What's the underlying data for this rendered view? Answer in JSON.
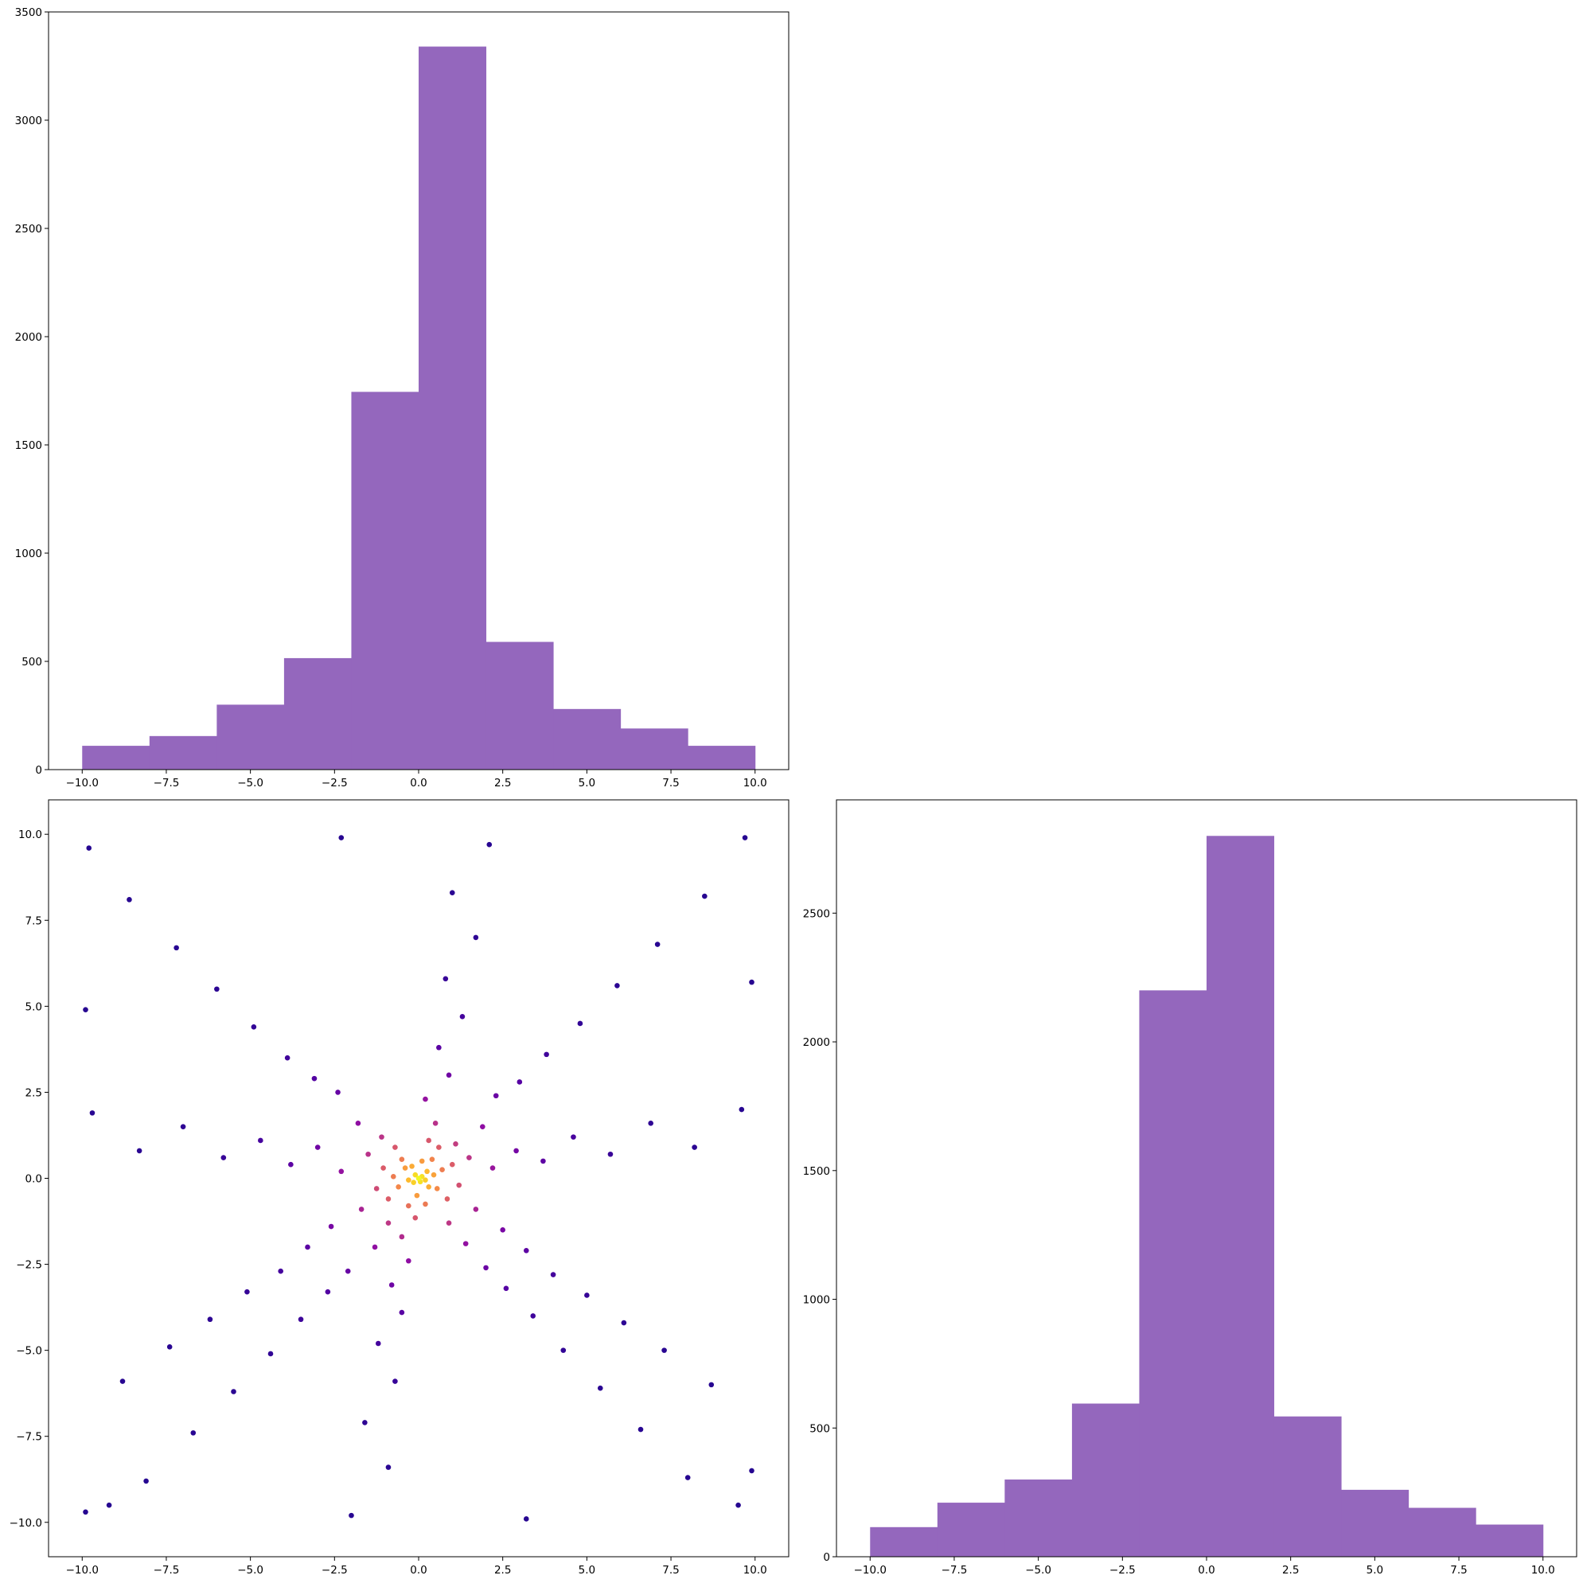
{
  "figure": {
    "background": "#ffffff"
  },
  "chart_data": [
    {
      "id": "top-left-histogram",
      "type": "bar",
      "subtype": "histogram",
      "title": "",
      "xlabel": "",
      "ylabel": "",
      "bin_edges": [
        -10.0,
        -8.0,
        -6.0,
        -4.0,
        -2.0,
        0.0,
        2.0,
        4.0,
        6.0,
        8.0,
        10.0
      ],
      "values": [
        110,
        155,
        300,
        515,
        1745,
        3340,
        590,
        280,
        190,
        110
      ],
      "xlim": [
        -11.0,
        11.0
      ],
      "ylim": [
        0,
        3500
      ],
      "xticks": [
        -10.0,
        -7.5,
        -5.0,
        -2.5,
        0.0,
        2.5,
        5.0,
        7.5,
        10.0
      ],
      "xtick_labels": [
        "−10.0",
        "−7.5",
        "−5.0",
        "−2.5",
        "0.0",
        "2.5",
        "5.0",
        "7.5",
        "10.0"
      ],
      "yticks": [
        0,
        500,
        1000,
        1500,
        2000,
        2500,
        3000,
        3500
      ],
      "ytick_labels": [
        "0",
        "500",
        "1000",
        "1500",
        "2000",
        "2500",
        "3000",
        "3500"
      ],
      "color": "#9467bd",
      "grid": false
    },
    {
      "id": "bottom-left-scatter",
      "type": "scatter",
      "title": "",
      "xlabel": "",
      "ylabel": "",
      "xlim": [
        -11.0,
        11.0
      ],
      "ylim": [
        -11.0,
        11.0
      ],
      "xticks": [
        -10.0,
        -7.5,
        -5.0,
        -2.5,
        0.0,
        2.5,
        5.0,
        7.5,
        10.0
      ],
      "xtick_labels": [
        "−10.0",
        "−7.5",
        "−5.0",
        "−2.5",
        "0.0",
        "2.5",
        "5.0",
        "7.5",
        "10.0"
      ],
      "yticks": [
        -10.0,
        -7.5,
        -5.0,
        -2.5,
        0.0,
        2.5,
        5.0,
        7.5,
        10.0
      ],
      "ytick_labels": [
        "−10.0",
        "−7.5",
        "−5.0",
        "−2.5",
        "0.0",
        "2.5",
        "5.0",
        "7.5",
        "10.0"
      ],
      "colormap": "plasma",
      "color_encoding": "point density",
      "points": [
        [
          0.0,
          0.0
        ],
        [
          0.1,
          0.05
        ],
        [
          -0.1,
          0.1
        ],
        [
          0.05,
          -0.1
        ],
        [
          0.2,
          -0.05
        ],
        [
          -0.15,
          -0.12
        ],
        [
          0.25,
          0.2
        ],
        [
          -0.3,
          -0.05
        ],
        [
          0.3,
          -0.25
        ],
        [
          -0.2,
          0.35
        ],
        [
          0.45,
          0.1
        ],
        [
          -0.4,
          0.3
        ],
        [
          0.1,
          0.5
        ],
        [
          -0.05,
          -0.5
        ],
        [
          0.55,
          -0.3
        ],
        [
          -0.6,
          -0.25
        ],
        [
          0.4,
          0.55
        ],
        [
          -0.5,
          0.55
        ],
        [
          0.7,
          0.25
        ],
        [
          -0.75,
          0.05
        ],
        [
          0.2,
          -0.75
        ],
        [
          -0.3,
          -0.8
        ],
        [
          0.85,
          -0.6
        ],
        [
          -0.9,
          -0.6
        ],
        [
          0.6,
          0.9
        ],
        [
          -0.7,
          0.9
        ],
        [
          1.0,
          0.4
        ],
        [
          -1.05,
          0.3
        ],
        [
          0.3,
          1.1
        ],
        [
          -0.1,
          -1.15
        ],
        [
          1.2,
          -0.2
        ],
        [
          -1.25,
          -0.3
        ],
        [
          1.1,
          1.0
        ],
        [
          -1.1,
          1.2
        ],
        [
          0.9,
          -1.3
        ],
        [
          -0.9,
          -1.3
        ],
        [
          1.5,
          0.6
        ],
        [
          -1.5,
          0.7
        ],
        [
          0.5,
          1.6
        ],
        [
          -0.5,
          -1.7
        ],
        [
          1.7,
          -0.9
        ],
        [
          -1.7,
          -0.9
        ],
        [
          1.9,
          1.5
        ],
        [
          -1.8,
          1.6
        ],
        [
          1.4,
          -1.9
        ],
        [
          -1.3,
          -2.0
        ],
        [
          2.2,
          0.3
        ],
        [
          -2.3,
          0.2
        ],
        [
          0.2,
          2.3
        ],
        [
          -0.3,
          -2.4
        ],
        [
          2.5,
          -1.5
        ],
        [
          -2.6,
          -1.4
        ],
        [
          2.3,
          2.4
        ],
        [
          -2.4,
          2.5
        ],
        [
          2.0,
          -2.6
        ],
        [
          -2.1,
          -2.7
        ],
        [
          2.9,
          0.8
        ],
        [
          -3.0,
          0.9
        ],
        [
          0.9,
          3.0
        ],
        [
          -0.8,
          -3.1
        ],
        [
          3.2,
          -2.1
        ],
        [
          -3.3,
          -2.0
        ],
        [
          3.0,
          2.8
        ],
        [
          -3.1,
          2.9
        ],
        [
          2.6,
          -3.2
        ],
        [
          -2.7,
          -3.3
        ],
        [
          3.7,
          0.5
        ],
        [
          -3.8,
          0.4
        ],
        [
          0.6,
          3.8
        ],
        [
          -0.5,
          -3.9
        ],
        [
          4.0,
          -2.8
        ],
        [
          -4.1,
          -2.7
        ],
        [
          3.8,
          3.6
        ],
        [
          -3.9,
          3.5
        ],
        [
          3.4,
          -4.0
        ],
        [
          -3.5,
          -4.1
        ],
        [
          4.6,
          1.2
        ],
        [
          -4.7,
          1.1
        ],
        [
          1.3,
          4.7
        ],
        [
          -1.2,
          -4.8
        ],
        [
          5.0,
          -3.4
        ],
        [
          -5.1,
          -3.3
        ],
        [
          4.8,
          4.5
        ],
        [
          -4.9,
          4.4
        ],
        [
          4.3,
          -5.0
        ],
        [
          -4.4,
          -5.1
        ],
        [
          5.7,
          0.7
        ],
        [
          -5.8,
          0.6
        ],
        [
          0.8,
          5.8
        ],
        [
          -0.7,
          -5.9
        ],
        [
          6.1,
          -4.2
        ],
        [
          -6.2,
          -4.1
        ],
        [
          5.9,
          5.6
        ],
        [
          -6.0,
          5.5
        ],
        [
          5.4,
          -6.1
        ],
        [
          -5.5,
          -6.2
        ],
        [
          6.9,
          1.6
        ],
        [
          -7.0,
          1.5
        ],
        [
          1.7,
          7.0
        ],
        [
          -1.6,
          -7.1
        ],
        [
          7.3,
          -5.0
        ],
        [
          -7.4,
          -4.9
        ],
        [
          7.1,
          6.8
        ],
        [
          -7.2,
          6.7
        ],
        [
          6.6,
          -7.3
        ],
        [
          -6.7,
          -7.4
        ],
        [
          8.2,
          0.9
        ],
        [
          -8.3,
          0.8
        ],
        [
          1.0,
          8.3
        ],
        [
          -0.9,
          -8.4
        ],
        [
          8.7,
          -6.0
        ],
        [
          -8.8,
          -5.9
        ],
        [
          8.5,
          8.2
        ],
        [
          -8.6,
          8.1
        ],
        [
          8.0,
          -8.7
        ],
        [
          -8.1,
          -8.8
        ],
        [
          9.6,
          2.0
        ],
        [
          -9.7,
          1.9
        ],
        [
          2.1,
          9.7
        ],
        [
          -2.0,
          -9.8
        ],
        [
          9.9,
          -8.5
        ],
        [
          -9.9,
          -9.7
        ],
        [
          9.7,
          9.9
        ],
        [
          -9.8,
          9.6
        ],
        [
          9.5,
          -9.5
        ],
        [
          -9.2,
          -9.5
        ],
        [
          9.9,
          5.7
        ],
        [
          -9.9,
          4.9
        ],
        [
          3.2,
          -9.9
        ],
        [
          -2.3,
          9.9
        ]
      ],
      "grid": false
    },
    {
      "id": "bottom-right-histogram",
      "type": "bar",
      "subtype": "histogram",
      "title": "",
      "xlabel": "",
      "ylabel": "",
      "bin_edges": [
        -10.0,
        -8.0,
        -6.0,
        -4.0,
        -2.0,
        0.0,
        2.0,
        4.0,
        6.0,
        8.0,
        10.0
      ],
      "values": [
        115,
        210,
        300,
        595,
        2200,
        2800,
        545,
        260,
        190,
        125
      ],
      "xlim": [
        -11.0,
        11.0
      ],
      "ylim": [
        0,
        2940
      ],
      "xticks": [
        -10.0,
        -7.5,
        -5.0,
        -2.5,
        0.0,
        2.5,
        5.0,
        7.5,
        10.0
      ],
      "xtick_labels": [
        "−10.0",
        "−7.5",
        "−5.0",
        "−2.5",
        "0.0",
        "2.5",
        "5.0",
        "7.5",
        "10.0"
      ],
      "yticks": [
        0,
        500,
        1000,
        1500,
        2000,
        2500
      ],
      "ytick_labels": [
        "0",
        "500",
        "1000",
        "1500",
        "2000",
        "2500"
      ],
      "color": "#9467bd",
      "grid": false
    }
  ]
}
